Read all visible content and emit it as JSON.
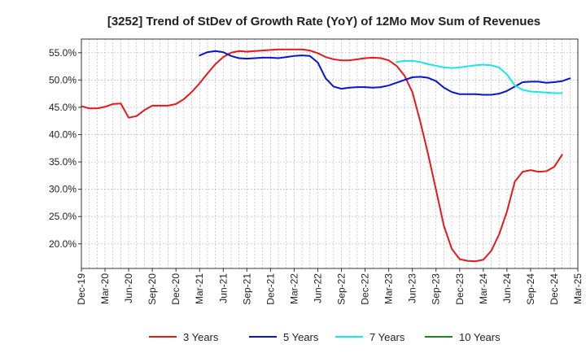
{
  "chart_data": {
    "type": "line",
    "title": "[3252]  Trend of StDev of Growth Rate (YoY) of 12Mo Mov Sum of Revenues",
    "xlabel": "",
    "ylabel": "",
    "ylim": [
      15.5,
      57.5
    ],
    "yticks": [
      20,
      25,
      30,
      35,
      40,
      45,
      50,
      55
    ],
    "ytick_labels": [
      "20.0%",
      "25.0%",
      "30.0%",
      "35.0%",
      "40.0%",
      "45.0%",
      "50.0%",
      "55.0%"
    ],
    "x_tick_labels": [
      "Dec-19",
      "Mar-20",
      "Jun-20",
      "Sep-20",
      "Dec-20",
      "Mar-21",
      "Jun-21",
      "Sep-21",
      "Dec-21",
      "Mar-22",
      "Jun-22",
      "Sep-22",
      "Dec-22",
      "Mar-23",
      "Jun-23",
      "Sep-23",
      "Dec-23",
      "Mar-24",
      "Jun-24",
      "Sep-24",
      "Dec-24",
      "Mar-25"
    ],
    "x_count": 64,
    "grid": true,
    "legend_position": "bottom",
    "series": [
      {
        "name": "3 Years",
        "color": "#e31a1c",
        "start_index": 0,
        "values": [
          45.2,
          44.8,
          44.8,
          45.1,
          45.6,
          45.7,
          43.1,
          43.4,
          44.5,
          45.3,
          45.3,
          45.3,
          45.6,
          46.5,
          47.8,
          49.4,
          51.2,
          52.9,
          54.2,
          55.0,
          55.3,
          55.2,
          55.3,
          55.4,
          55.5,
          55.6,
          55.6,
          55.6,
          55.6,
          55.4,
          54.9,
          54.2,
          53.8,
          53.6,
          53.6,
          53.8,
          54.0,
          54.1,
          54.0,
          53.6,
          52.6,
          50.8,
          47.8,
          42.4,
          36.4,
          29.9,
          23.3,
          19.1,
          17.2,
          16.9,
          16.8,
          17.1,
          18.7,
          21.7,
          25.9,
          31.4,
          33.2,
          33.5,
          33.2,
          33.3,
          34.1,
          36.3
        ]
      },
      {
        "name": "5 Years",
        "color": "#0a14c8",
        "start_index": 15,
        "values": [
          54.5,
          55.1,
          55.3,
          55.1,
          54.4,
          54.0,
          53.9,
          54.0,
          54.1,
          54.1,
          54.0,
          54.2,
          54.4,
          54.5,
          54.4,
          53.2,
          50.3,
          48.8,
          48.4,
          48.6,
          48.7,
          48.7,
          48.6,
          48.7,
          49.0,
          49.5,
          50.0,
          50.5,
          50.6,
          50.4,
          49.8,
          48.6,
          47.8,
          47.4,
          47.4,
          47.4,
          47.3,
          47.3,
          47.5,
          48.0,
          48.8,
          49.6,
          49.7,
          49.7,
          49.5,
          49.6,
          49.8,
          50.3
        ]
      },
      {
        "name": "7 Years",
        "color": "#1ae6e6",
        "start_index": 40,
        "values": [
          53.3,
          53.5,
          53.5,
          53.3,
          52.9,
          52.6,
          52.3,
          52.2,
          52.3,
          52.5,
          52.7,
          52.8,
          52.7,
          52.3,
          51.0,
          49.0,
          48.2,
          47.9,
          47.8,
          47.7,
          47.6,
          47.6
        ]
      },
      {
        "name": "10 Years",
        "color": "#1a8a1a",
        "start_index": 0,
        "values": []
      }
    ]
  }
}
